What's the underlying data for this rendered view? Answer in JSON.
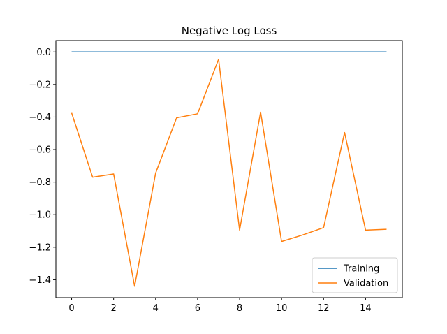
{
  "chart_data": {
    "type": "line",
    "title": "Negative Log Loss",
    "xlabel": "",
    "ylabel": "",
    "xlim": [
      -0.75,
      15.75
    ],
    "ylim": [
      -1.51,
      0.07
    ],
    "x_ticks": [
      0,
      2,
      4,
      6,
      8,
      10,
      12,
      14
    ],
    "y_ticks": [
      0.0,
      -0.2,
      -0.4,
      -0.6,
      -0.8,
      -1.0,
      -1.2,
      -1.4
    ],
    "y_tick_labels": [
      "0.0",
      "−0.2",
      "−0.4",
      "−0.6",
      "−0.8",
      "−1.0",
      "−1.2",
      "−1.4"
    ],
    "grid": false,
    "legend_position": "lower-right",
    "x": [
      0,
      1,
      2,
      3,
      4,
      5,
      6,
      7,
      8,
      9,
      10,
      11,
      12,
      13,
      14,
      15
    ],
    "series": [
      {
        "name": "Training",
        "color": "#1f77b4",
        "values": [
          0,
          0,
          0,
          0,
          0,
          0,
          0,
          0,
          0,
          0,
          0,
          0,
          0,
          0,
          0,
          0
        ]
      },
      {
        "name": "Validation",
        "color": "#ff7f0e",
        "values": [
          -0.375,
          -0.77,
          -0.75,
          -1.44,
          -0.745,
          -0.405,
          -0.38,
          -0.045,
          -1.095,
          -0.37,
          -1.165,
          -1.125,
          -1.08,
          -0.495,
          -1.095,
          -1.09
        ]
      }
    ]
  }
}
